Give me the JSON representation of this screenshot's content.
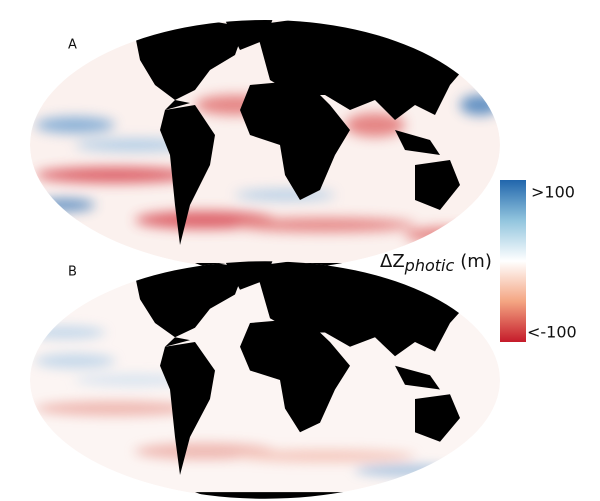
{
  "panels": [
    {
      "label": "A"
    },
    {
      "label": "B"
    }
  ],
  "colorbar": {
    "title": {
      "symbol": "ΔZ",
      "subscript": "photic",
      "unit": "(m)"
    },
    "top_label": ">100",
    "bottom_label": "<-100"
  }
}
